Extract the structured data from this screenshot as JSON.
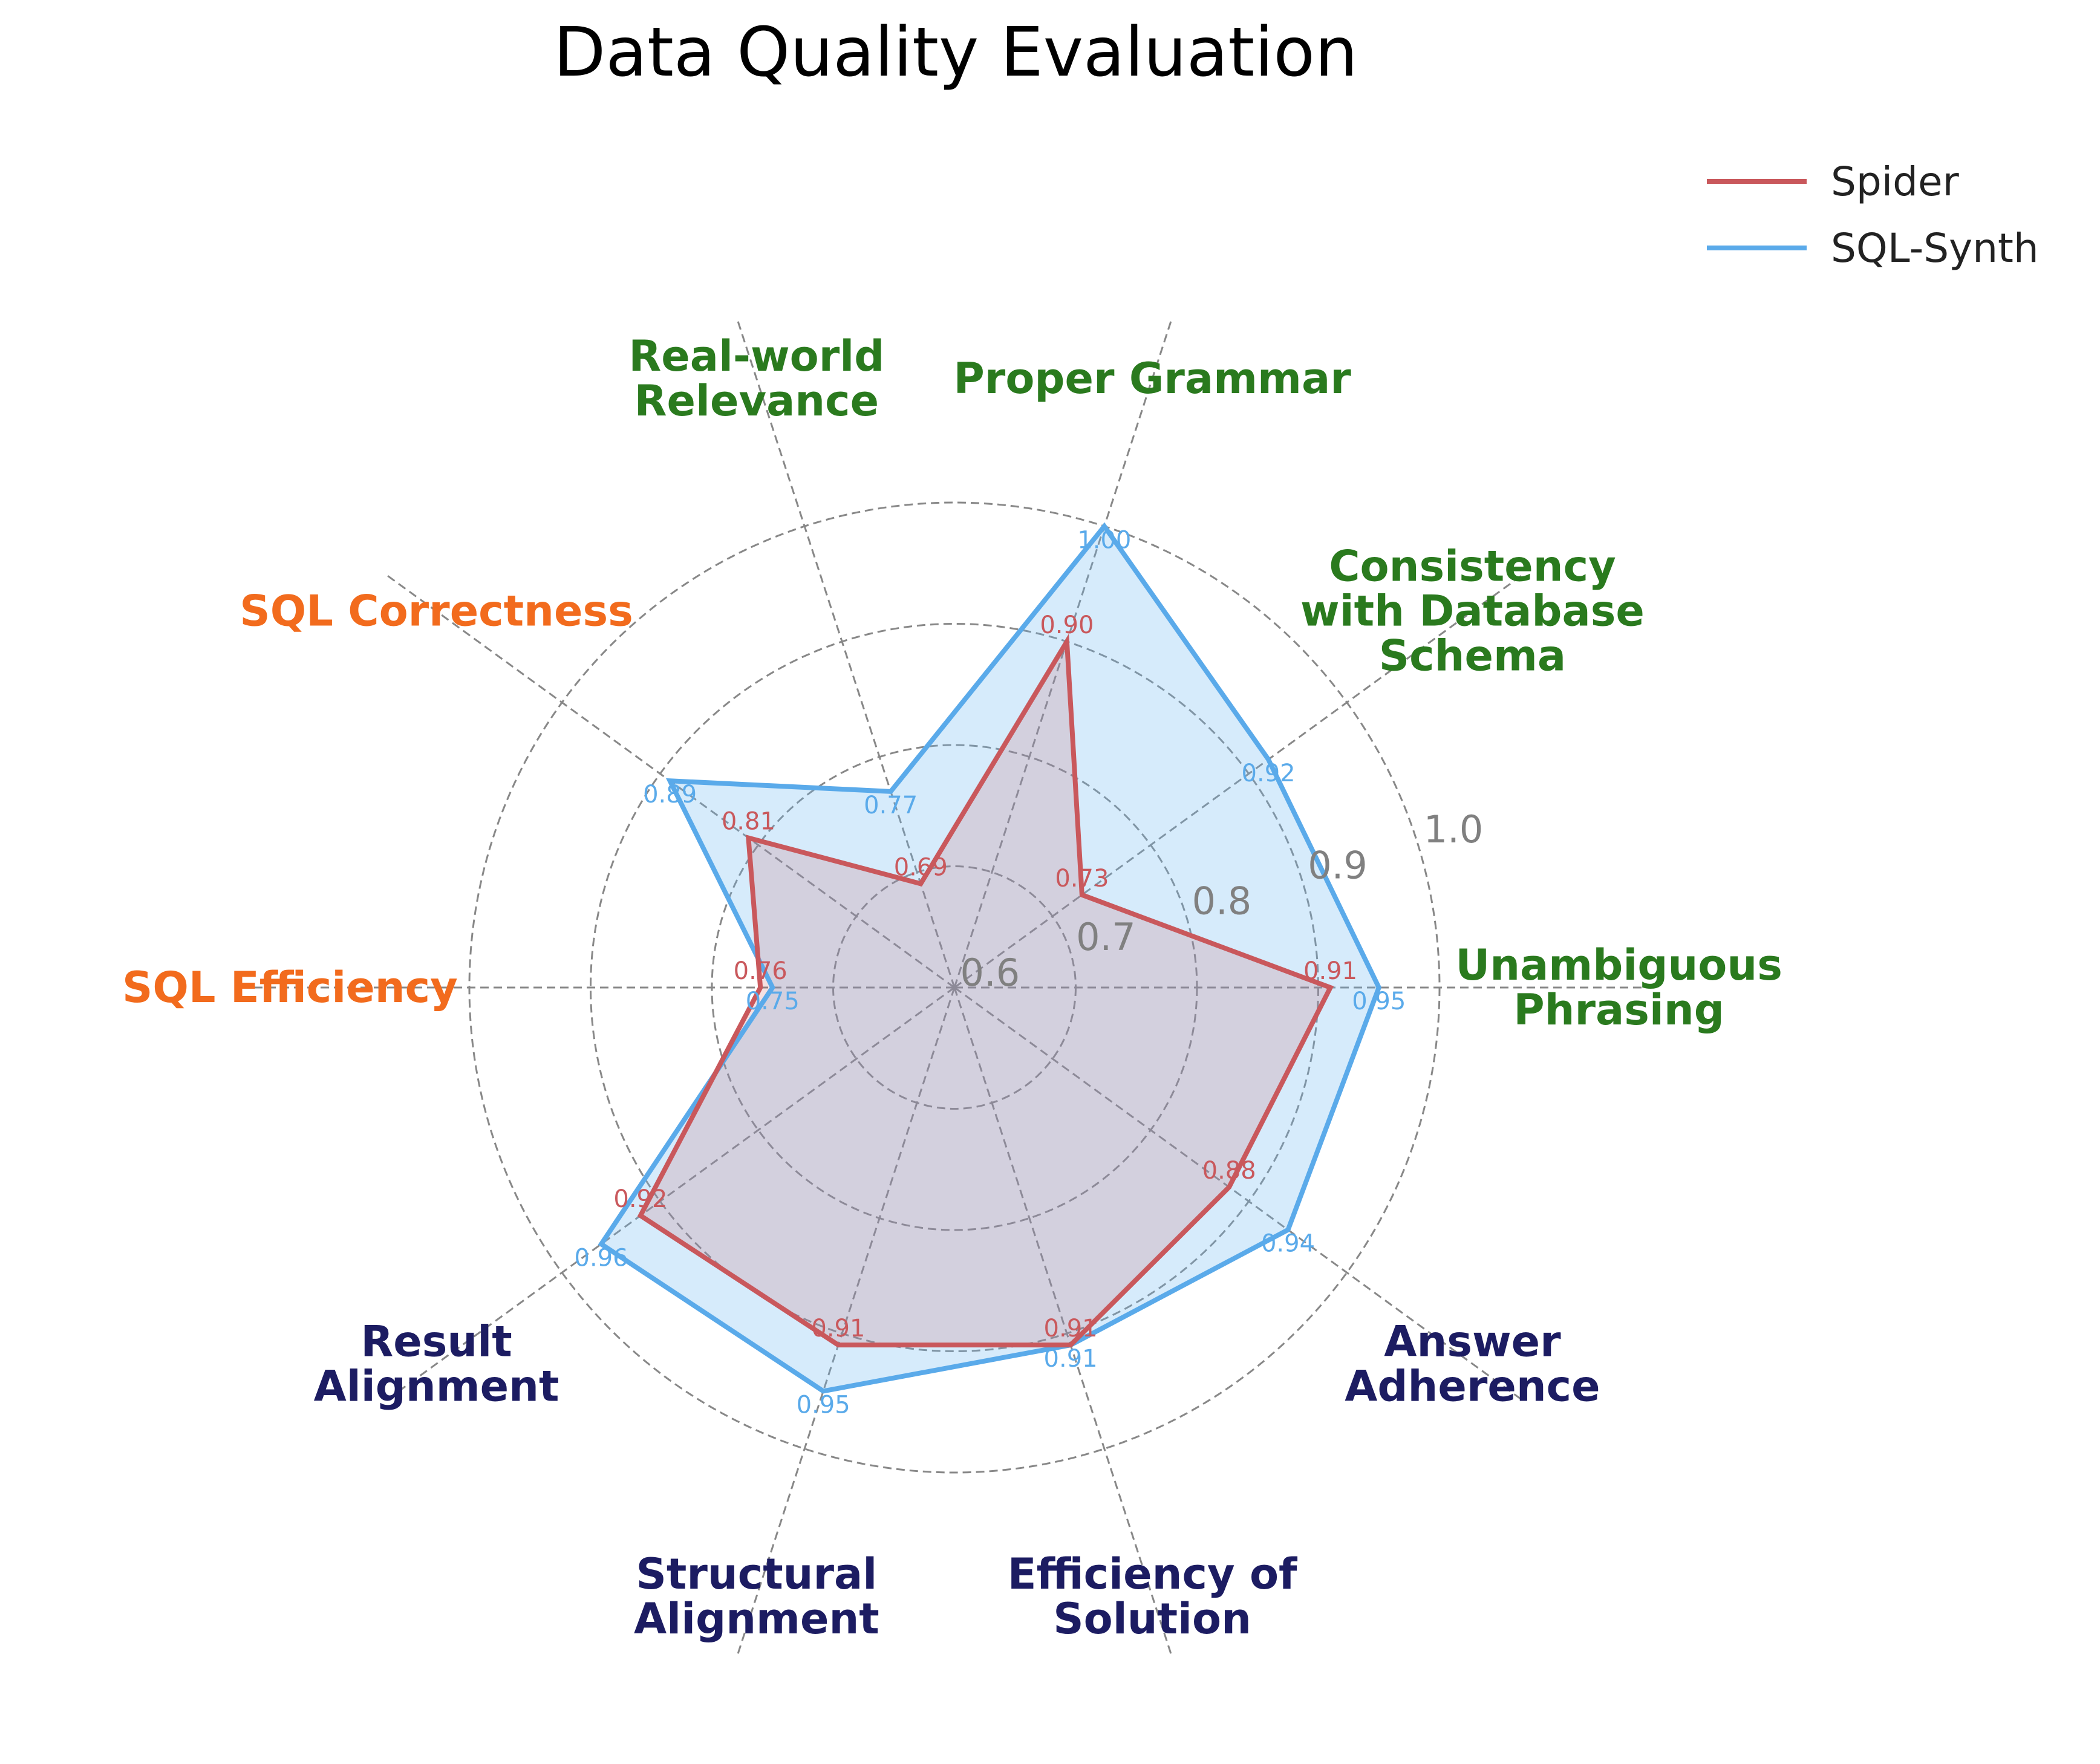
{
  "chart_data": {
    "type": "radar",
    "title": "Data Quality Evaluation",
    "axes": [
      {
        "label": [
          "Unambiguous",
          "Phrasing"
        ],
        "group": "question"
      },
      {
        "label": [
          "Consistency",
          "with Database",
          "Schema"
        ],
        "group": "question"
      },
      {
        "label": [
          "Proper Grammar"
        ],
        "group": "question"
      },
      {
        "label": [
          "Real-world",
          "Relevance"
        ],
        "group": "question"
      },
      {
        "label": [
          "SQL Correctness"
        ],
        "group": "sql"
      },
      {
        "label": [
          "SQL Efficiency"
        ],
        "group": "sql"
      },
      {
        "label": [
          "Result",
          "Alignment"
        ],
        "group": "alignment"
      },
      {
        "label": [
          "Structural",
          "Alignment"
        ],
        "group": "alignment"
      },
      {
        "label": [
          "Efficiency of",
          "Solution"
        ],
        "group": "alignment"
      },
      {
        "label": [
          "Answer",
          "Adherence"
        ],
        "group": "alignment"
      }
    ],
    "group_colors": {
      "question": "#2a7a1e",
      "sql": "#f26b1d",
      "alignment": "#1c1c62"
    },
    "radial_ticks": [
      0.6,
      0.7,
      0.8,
      0.9,
      1.0
    ],
    "radial_tick_labels": [
      "0.6",
      "0.7",
      "0.8",
      "0.9",
      "1.0"
    ],
    "rlim": [
      0.6,
      1.0
    ],
    "grid": true,
    "legend": {
      "position": "top-right"
    },
    "series": [
      {
        "name": "Spider",
        "color": "#c9585c",
        "fill": "#c9585c",
        "fill_opacity": 0.18,
        "values": [
          0.91,
          0.73,
          0.9,
          0.69,
          0.81,
          0.76,
          0.92,
          0.91,
          0.91,
          0.88
        ],
        "labels": [
          "0.91",
          "0.73",
          "0.90",
          "0.69",
          "0.81",
          "0.76",
          "0.92",
          "0.91",
          "0.91",
          "0.88"
        ]
      },
      {
        "name": "SQL-Synth",
        "color": "#5aaaea",
        "fill": "#6ab8f2",
        "fill_opacity": 0.28,
        "values": [
          0.95,
          0.92,
          1.0,
          0.77,
          0.89,
          0.75,
          0.96,
          0.95,
          0.91,
          0.94
        ],
        "labels": [
          "0.95",
          "0.92",
          "1.00",
          "0.77",
          "0.89",
          "0.75",
          "0.96",
          "0.95",
          "0.91",
          "0.94"
        ]
      }
    ]
  }
}
